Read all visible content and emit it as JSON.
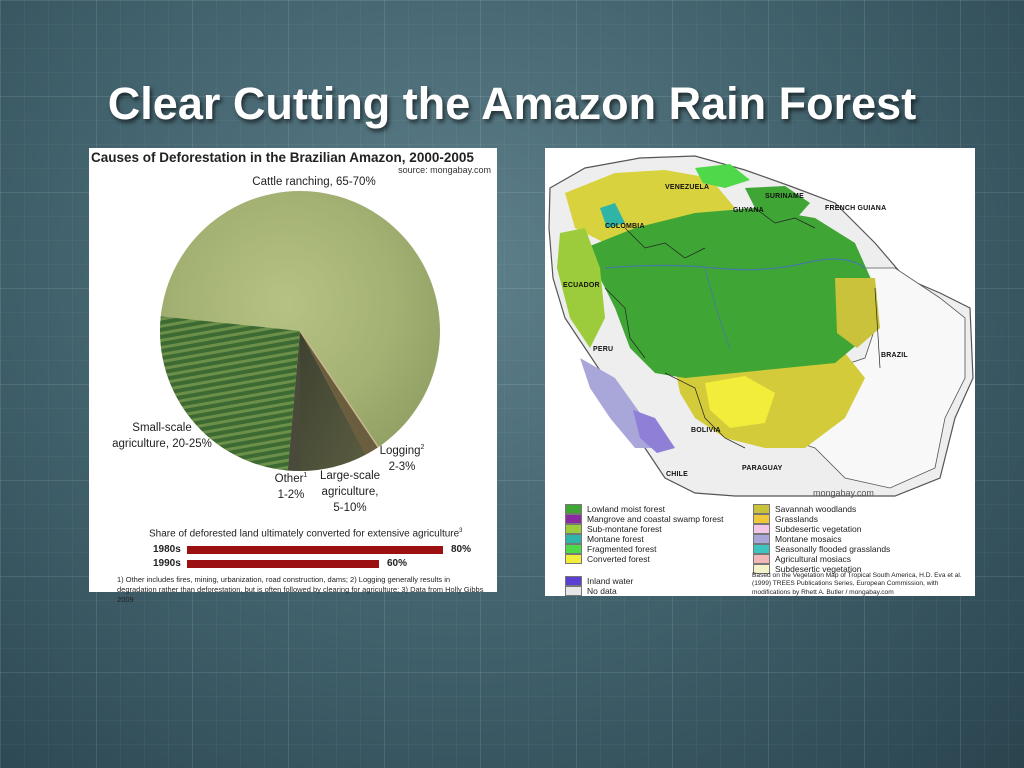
{
  "slide": {
    "title": "Clear Cutting the Amazon Rain Forest"
  },
  "left_chart": {
    "title": "Causes of Deforestation in the Brazilian Amazon, 2000-2005",
    "source": "source: mongabay.com",
    "pie_labels": {
      "cattle": "Cattle ranching, 65-70%",
      "small_line1": "Small-scale",
      "small_line2": "agriculture, 20-25%",
      "logging_line1": "Logging",
      "logging_sup": "2",
      "logging_line2": "2-3%",
      "other_line1": "Other",
      "other_sup": "1",
      "other_line2": "1-2%",
      "large_line1": "Large-scale",
      "large_line2": "agriculture,",
      "large_line3": "5-10%"
    },
    "bar_caption": "Share of deforested land ultimately converted for extensive agriculture",
    "bar_caption_sup": "3",
    "bars": [
      {
        "label": "1980s",
        "value_text": "80%"
      },
      {
        "label": "1990s",
        "value_text": "60%"
      }
    ],
    "footnote": "1) Other includes fires, mining, urbanization, road construction, dams; 2) Logging generally results in degradation rather than deforestation, but is often followed by clearing for agriculture; 3) Data from Holly Gibbs 2009"
  },
  "chart_data": {
    "type": "pie",
    "title": "Causes of Deforestation in the Brazilian Amazon, 2000-2005",
    "slices": [
      {
        "name": "Cattle ranching",
        "value": "65-70%"
      },
      {
        "name": "Small-scale agriculture",
        "value": "20-25%"
      },
      {
        "name": "Large-scale agriculture",
        "value": "5-10%"
      },
      {
        "name": "Other",
        "value": "1-2%"
      },
      {
        "name": "Logging",
        "value": "2-3%"
      }
    ],
    "bar_series": {
      "type": "bar",
      "title": "Share of deforested land ultimately converted for extensive agriculture",
      "categories": [
        "1980s",
        "1990s"
      ],
      "values": [
        80,
        60
      ]
    }
  },
  "map": {
    "countries": {
      "venezuela": "VENEZUELA",
      "suriname": "SURINAME",
      "guyana": "GUYANA",
      "french_guiana": "FRENCH GUIANA",
      "colombia": "COLOMBIA",
      "ecuador": "ECUADOR",
      "peru": "PERU",
      "brazil": "BRAZIL",
      "bolivia": "BOLIVIA",
      "chile": "CHILE",
      "paraguay": "PARAGUAY"
    },
    "watermark": "mongabay.com",
    "legend_left": [
      {
        "label": "Lowland moist forest",
        "color": "#3fa535"
      },
      {
        "label": "Mangrove and coastal swamp forest",
        "color": "#8a2aa0"
      },
      {
        "label": "Sub-montane forest",
        "color": "#9ccc3c"
      },
      {
        "label": "Montane forest",
        "color": "#2fb5a8"
      },
      {
        "label": "Fragmented forest",
        "color": "#4ed84a"
      },
      {
        "label": "Converted forest",
        "color": "#f2ec3a"
      }
    ],
    "legend_water": [
      {
        "label": "Inland water",
        "color": "#5a3fd0"
      },
      {
        "label": "No data",
        "color": "#e6e6e6"
      }
    ],
    "legend_right": [
      {
        "label": "Savannah woodlands",
        "color": "#c9c23a"
      },
      {
        "label": "Grasslands",
        "color": "#f0c83a"
      },
      {
        "label": "Subdesertic vegetation",
        "color": "#f4c6e8"
      },
      {
        "label": "Montane mosaics",
        "color": "#a9a7d9"
      },
      {
        "label": "Seasonally flooded grasslands",
        "color": "#3cc4c0"
      },
      {
        "label": "Agricultural mosiacs",
        "color": "#f2b8b8"
      },
      {
        "label": "Subdesertic vegetation",
        "color": "#f4f2c8"
      }
    ],
    "credit": "Based on the Vegetation Map of Tropical South America, H.D. Eva et al. (1999) TREES Publications Series, European Commission, with modifications by Rhett A. Butler / mongabay.com"
  }
}
